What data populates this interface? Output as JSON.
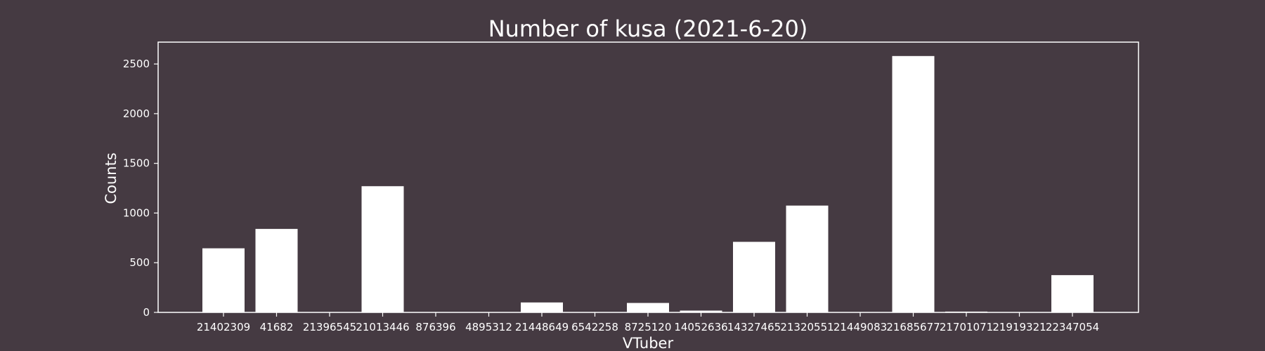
{
  "colors": {
    "background": "#453a42",
    "bar": "#ffffff",
    "text": "#ffffff"
  },
  "chart_data": {
    "type": "bar",
    "title": "Number of kusa (2021-6-20)",
    "xlabel": "VTuber",
    "ylabel": "Counts",
    "ylim": [
      0,
      2720
    ],
    "yticks": [
      0,
      500,
      1000,
      1500,
      2000,
      2500
    ],
    "grid": false,
    "categories": [
      "21402309",
      "41682",
      "21396545",
      "21013446",
      "876396",
      "4895312",
      "21448649",
      "6542258",
      "8725120",
      "14052636",
      "14327465",
      "21320551",
      "21449083",
      "21685677",
      "21701071",
      "21919321",
      "22347054"
    ],
    "values": [
      645,
      840,
      0,
      1270,
      0,
      0,
      100,
      0,
      95,
      18,
      710,
      1075,
      0,
      2580,
      8,
      0,
      375
    ]
  }
}
